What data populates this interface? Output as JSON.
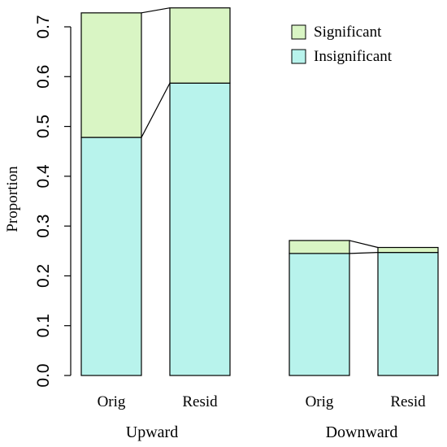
{
  "chart_data": {
    "type": "bar",
    "stacked": true,
    "categories": [
      "Orig",
      "Resid",
      "Orig",
      "Resid"
    ],
    "groups": [
      {
        "label": "Upward",
        "categories": [
          "Orig",
          "Resid"
        ]
      },
      {
        "label": "Downward",
        "categories": [
          "Orig",
          "Resid"
        ]
      }
    ],
    "series": [
      {
        "name": "Insignificant",
        "color": "#b8f3ec",
        "values": [
          0.478,
          0.587,
          0.245,
          0.247
        ]
      },
      {
        "name": "Significant",
        "color": "#d9f5c4",
        "values": [
          0.25,
          0.151,
          0.026,
          0.01
        ]
      }
    ],
    "ylabel": "Proportion",
    "ylim": [
      0,
      0.74
    ],
    "yticks": [
      "0.0",
      "0.1",
      "0.2",
      "0.3",
      "0.4",
      "0.5",
      "0.6",
      "0.7"
    ],
    "legend": {
      "position": "top-right",
      "entries": [
        "Significant",
        "Insignificant"
      ]
    },
    "grid": false
  }
}
